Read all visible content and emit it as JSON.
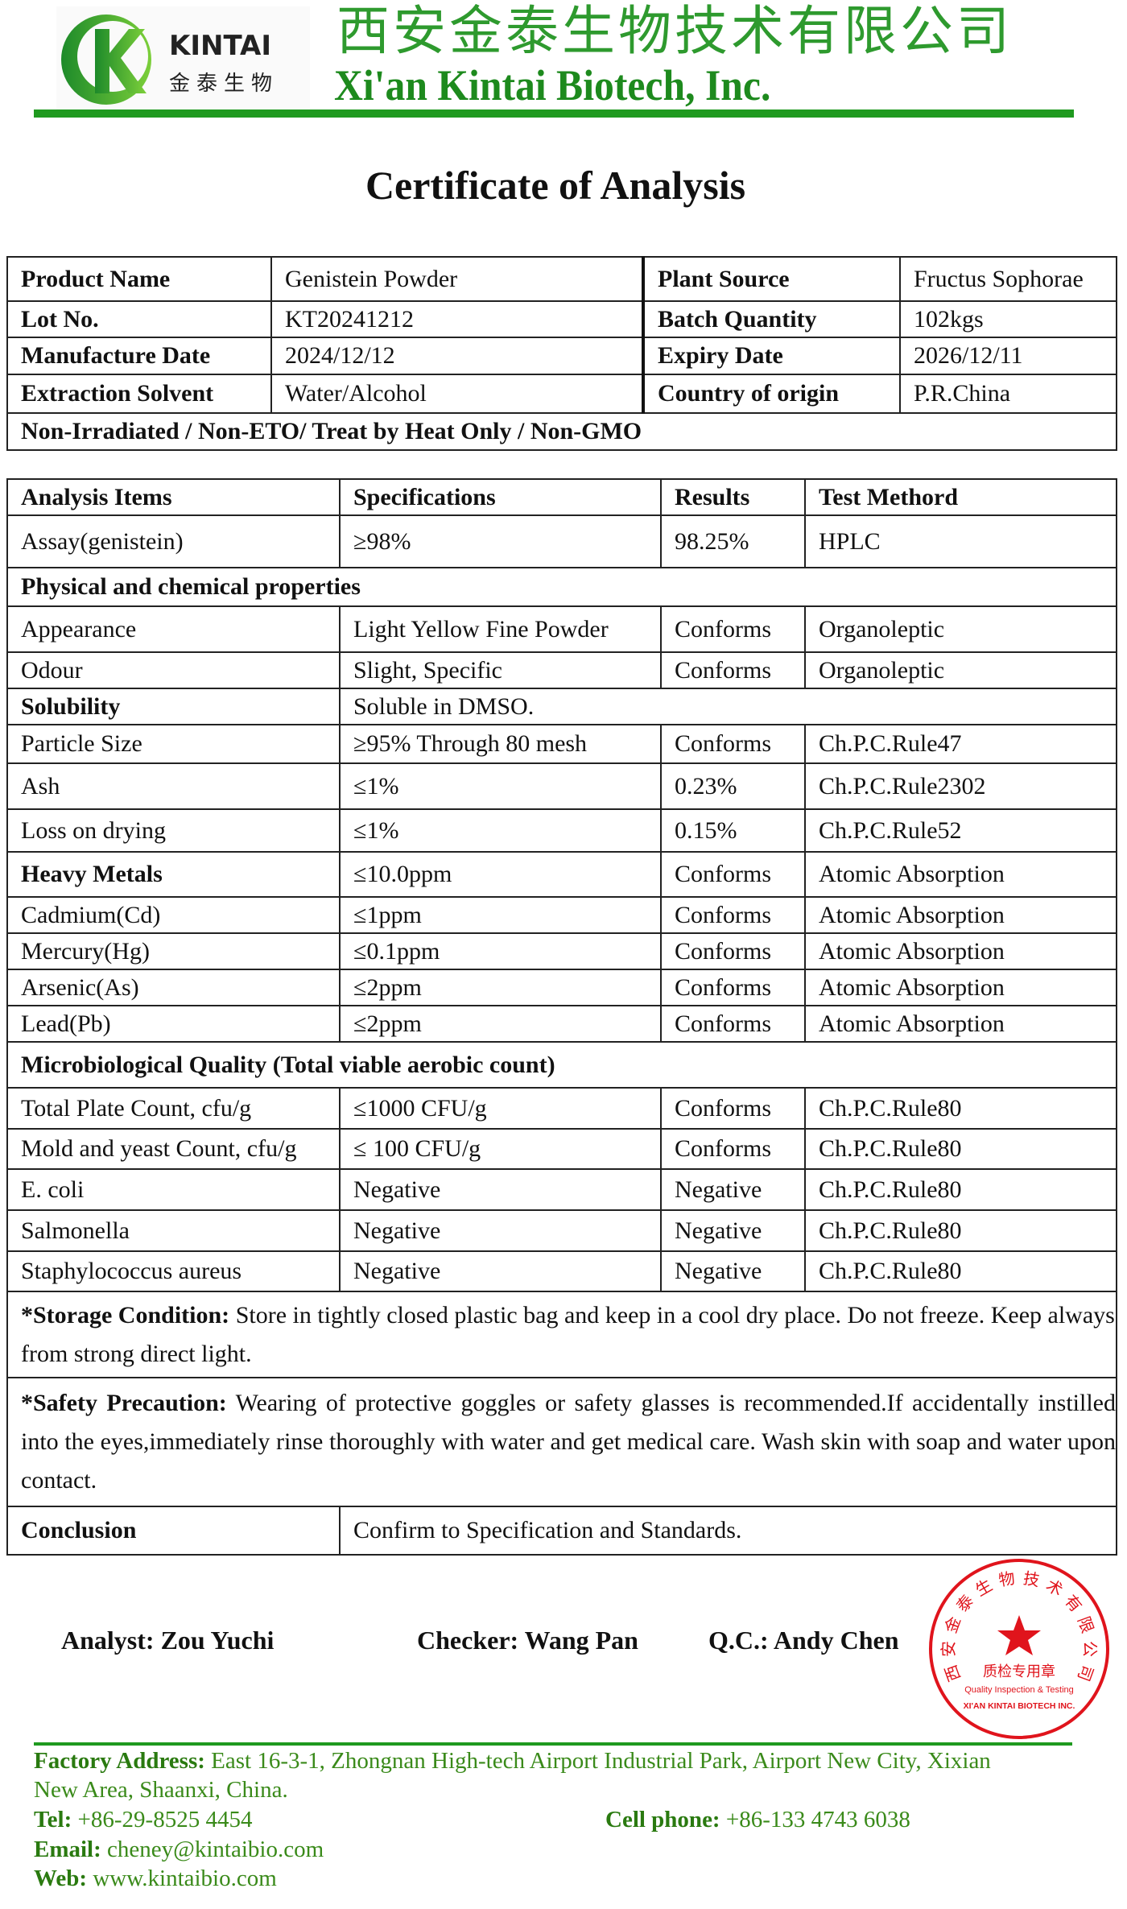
{
  "header": {
    "logo_text": "KINTAI",
    "logo_cn": "金泰生物",
    "company_cn": "西安金泰生物技术有限公司",
    "company_en": "Xi'an Kintai Biotech, Inc.",
    "brand_color": "#1f9a1f"
  },
  "title": "Certificate of Analysis",
  "product_info": {
    "rows": [
      [
        "Product Name",
        "Genistein Powder",
        "Plant Source",
        "Fructus Sophorae"
      ],
      [
        "Lot No.",
        "KT20241212",
        "Batch Quantity",
        "102kgs"
      ],
      [
        "Manufacture Date",
        "2024/12/12",
        "Expiry Date",
        "2026/12/11"
      ],
      [
        "Extraction Solvent",
        "Water/Alcohol",
        "Country of origin",
        "P.R.China"
      ]
    ],
    "note": "Non-Irradiated / Non-ETO/ Treat by Heat Only / Non-GMO"
  },
  "analysis": {
    "headers": [
      "Analysis Items",
      "Specifications",
      "Results",
      "Test Methord"
    ],
    "rows": [
      {
        "type": "row",
        "h": 43,
        "cells": [
          "Assay(genistein)",
          "≥98%",
          "98.25%",
          "HPLC"
        ]
      },
      {
        "type": "section",
        "h": 32,
        "label": "Physical and chemical properties"
      },
      {
        "type": "row",
        "h": 38,
        "cells": [
          "Appearance",
          "Light Yellow Fine Powder",
          "Conforms",
          "Organoleptic"
        ]
      },
      {
        "type": "row",
        "h": 30,
        "cells": [
          "Odour",
          "Slight, Specific",
          "Conforms",
          "Organoleptic"
        ]
      },
      {
        "type": "span",
        "h": 30,
        "bold": true,
        "cells": [
          "Solubility",
          "Soluble in DMSO."
        ]
      },
      {
        "type": "row",
        "h": 32,
        "cells": [
          "Particle Size",
          "≥95% Through 80 mesh",
          "Conforms",
          "Ch.P.C.Rule47"
        ]
      },
      {
        "type": "row",
        "h": 38,
        "cells": [
          "Ash",
          "≤1%",
          "0.23%",
          "Ch.P.C.Rule2302"
        ]
      },
      {
        "type": "row",
        "h": 35,
        "cells": [
          "Loss on drying",
          "≤1%",
          "0.15%",
          "Ch.P.C.Rule52"
        ]
      },
      {
        "type": "row",
        "h": 37,
        "bold": true,
        "cells": [
          "Heavy Metals",
          "≤10.0ppm",
          "Conforms",
          "Atomic Absorption"
        ]
      },
      {
        "type": "row",
        "h": 30,
        "cells": [
          "Cadmium(Cd)",
          "≤1ppm",
          "Conforms",
          "Atomic Absorption"
        ]
      },
      {
        "type": "row",
        "h": 30,
        "cells": [
          "Mercury(Hg)",
          "≤0.1ppm",
          "Conforms",
          "Atomic Absorption"
        ]
      },
      {
        "type": "row",
        "h": 30,
        "cells": [
          "Arsenic(As)",
          "≤2ppm",
          "Conforms",
          "Atomic Absorption"
        ]
      },
      {
        "type": "row",
        "h": 30,
        "cells": [
          "Lead(Pb)",
          "≤2ppm",
          "Conforms",
          "Atomic Absorption"
        ]
      },
      {
        "type": "section",
        "h": 38,
        "label": "Microbiological Quality (Total viable aerobic count)"
      },
      {
        "type": "row",
        "h": 34,
        "cells": [
          "Total Plate Count, cfu/g",
          "≤1000 CFU/g",
          "Conforms",
          "Ch.P.C.Rule80"
        ]
      },
      {
        "type": "row",
        "h": 33,
        "cells": [
          "Mold and yeast Count, cfu/g",
          "≤ 100 CFU/g",
          "Conforms",
          "Ch.P.C.Rule80"
        ]
      },
      {
        "type": "row",
        "h": 34,
        "cells": [
          "E. coli",
          "Negative",
          "Negative",
          "Ch.P.C.Rule80"
        ]
      },
      {
        "type": "row",
        "h": 34,
        "cells": [
          "Salmonella",
          "Negative",
          "Negative",
          "Ch.P.C.Rule80"
        ]
      },
      {
        "type": "row",
        "h": 33,
        "cells": [
          "Staphylococcus aureus",
          "Negative",
          "Negative",
          "Ch.P.C.Rule80"
        ]
      },
      {
        "type": "note",
        "h": 71,
        "label": "*Storage Condition:",
        "text": " Store in tightly closed plastic bag and keep in a cool dry place. Do not freeze. Keep always from strong direct light."
      },
      {
        "type": "note",
        "h": 106,
        "label": "*Safety Precaution:",
        "text": " Wearing of protective goggles or safety glasses is recommended.If accidentally instilled into the eyes,immediately rinse thoroughly with water and get medical care. Wash skin with soap and water upon contact."
      },
      {
        "type": "span",
        "h": 40,
        "bold": false,
        "boldFirst": true,
        "cells": [
          "Conclusion",
          "Confirm to Specification and Standards."
        ]
      }
    ]
  },
  "signatures": {
    "analyst": "Analyst: Zou Yuchi",
    "checker": "Checker: Wang Pan",
    "qc": "Q.C.: Andy Chen"
  },
  "stamp": {
    "cn_ring": "西安金泰生物技术有限公司",
    "en_ring": "XI'AN KINTAI BIOTECH INC.",
    "center_cn": "质检专用章",
    "center_en": "Quality Inspection & Testing",
    "color": "#e0141c"
  },
  "footer": {
    "address_label": "Factory Address:",
    "address": " East 16-3-1, Zhongnan High-tech Airport Industrial Park, Airport New City, Xixian",
    "address2": "New Area, Shaanxi, China.",
    "tel_label": "Tel:",
    "tel": " +86-29-8525 4454",
    "cell_label": "Cell phone:",
    "cell": " +86-133 4743 6038",
    "email_label": "Email:",
    "email": " cheney@kintaibio.com",
    "web_label": "Web:",
    "web": " www.kintaibio.com"
  }
}
